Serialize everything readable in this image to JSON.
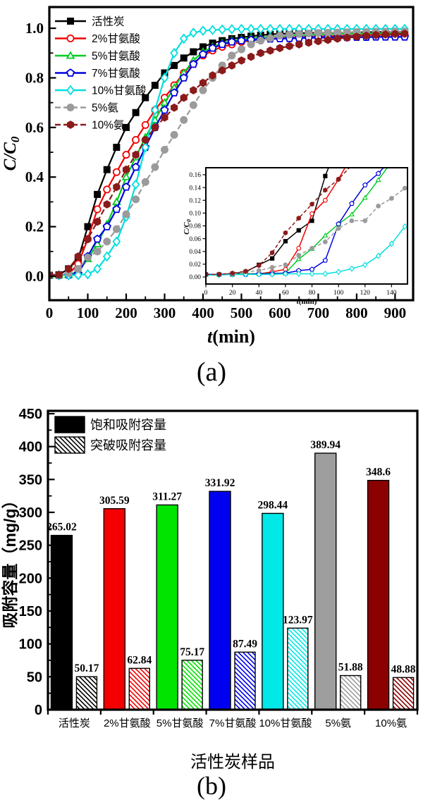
{
  "captions": {
    "a": "(a)",
    "b": "(b)"
  },
  "chart_data": [
    {
      "id": "a",
      "type": "line",
      "title": "",
      "xlabel_italic": "t",
      "xlabel_rest": "(min)",
      "ylabel_main": "C/C",
      "ylabel_sub": "0",
      "xlim": [
        0,
        947
      ],
      "ylim": [
        -0.09,
        1.09
      ],
      "xticks": [
        0,
        100,
        200,
        300,
        400,
        500,
        600,
        700,
        800,
        900
      ],
      "yticks": [
        0.0,
        0.2,
        0.4,
        0.6,
        0.8,
        1.0
      ],
      "legend_position": "upper-left",
      "x": [
        0,
        25,
        50,
        75,
        100,
        125,
        150,
        175,
        200,
        225,
        250,
        275,
        300,
        325,
        350,
        375,
        400,
        425,
        450,
        475,
        500,
        525,
        550,
        575,
        600,
        625,
        650,
        675,
        700,
        725,
        750,
        775,
        800,
        825,
        850,
        875,
        900,
        925
      ],
      "series": [
        {
          "name": "活性炭",
          "slug": "activated-carbon",
          "color": "#000000",
          "marker": "square",
          "filled": true,
          "dash": null,
          "values": [
            0.004,
            0.006,
            0.03,
            0.07,
            0.2,
            0.33,
            0.43,
            0.52,
            0.6,
            0.66,
            0.72,
            0.77,
            0.82,
            0.85,
            0.88,
            0.905,
            0.925,
            0.94,
            0.95,
            0.958,
            0.963,
            0.968,
            0.972,
            0.975,
            0.978,
            0.979,
            0.98,
            0.981,
            0.982,
            0.982,
            0.983,
            0.983,
            0.984,
            0.984,
            0.985,
            0.985,
            0.985,
            0.985
          ]
        },
        {
          "name": "2%甘氨酸",
          "slug": "glycine-2",
          "color": "#f20000",
          "marker": "circle",
          "filled": false,
          "dash": null,
          "values": [
            0.004,
            0.005,
            0.008,
            0.05,
            0.15,
            0.27,
            0.35,
            0.42,
            0.49,
            0.55,
            0.61,
            0.67,
            0.72,
            0.77,
            0.82,
            0.86,
            0.89,
            0.91,
            0.925,
            0.935,
            0.945,
            0.95,
            0.955,
            0.958,
            0.96,
            0.962,
            0.964,
            0.966,
            0.967,
            0.968,
            0.969,
            0.97,
            0.971,
            0.972,
            0.973,
            0.974,
            0.975,
            0.975
          ]
        },
        {
          "name": "5%甘氨酸",
          "slug": "glycine-5",
          "color": "#00cc22",
          "marker": "triangle",
          "filled": false,
          "dash": null,
          "values": [
            0.004,
            0.005,
            0.006,
            0.02,
            0.07,
            0.13,
            0.21,
            0.3,
            0.4,
            0.48,
            0.56,
            0.63,
            0.7,
            0.76,
            0.82,
            0.87,
            0.905,
            0.925,
            0.94,
            0.95,
            0.955,
            0.96,
            0.963,
            0.966,
            0.968,
            0.97,
            0.972,
            0.973,
            0.975,
            0.976,
            0.977,
            0.978,
            0.978,
            0.979,
            0.98,
            0.98,
            0.98,
            0.98
          ]
        },
        {
          "name": "7%甘氨酸",
          "slug": "glycine-7",
          "color": "#0000e0",
          "marker": "pentagon",
          "filled": false,
          "dash": null,
          "values": [
            0.004,
            0.004,
            0.005,
            0.01,
            0.08,
            0.15,
            0.2,
            0.27,
            0.36,
            0.44,
            0.52,
            0.6,
            0.67,
            0.74,
            0.8,
            0.855,
            0.895,
            0.92,
            0.935,
            0.945,
            0.95,
            0.953,
            0.955,
            0.957,
            0.958,
            0.959,
            0.96,
            0.961,
            0.962,
            0.962,
            0.963,
            0.963,
            0.964,
            0.964,
            0.965,
            0.965,
            0.965,
            0.965
          ]
        },
        {
          "name": "10%甘氨酸",
          "slug": "glycine-10",
          "color": "#00dede",
          "marker": "diamond",
          "filled": false,
          "dash": null,
          "values": [
            0.003,
            0.004,
            0.004,
            0.005,
            0.008,
            0.03,
            0.08,
            0.14,
            0.24,
            0.37,
            0.52,
            0.67,
            0.8,
            0.9,
            0.958,
            0.982,
            0.99,
            0.993,
            0.995,
            0.996,
            0.997,
            0.997,
            0.997,
            0.997,
            0.997,
            0.997,
            0.997,
            0.997,
            0.997,
            0.997,
            0.997,
            0.997,
            0.997,
            0.997,
            0.997,
            0.997,
            0.997,
            0.997
          ]
        },
        {
          "name": "5%氨",
          "slug": "ammonia-5",
          "color": "#9b9b9b",
          "marker": "circle",
          "filled": true,
          "dash": "8 4",
          "values": [
            0.004,
            0.005,
            0.012,
            0.03,
            0.076,
            0.1,
            0.14,
            0.19,
            0.25,
            0.31,
            0.38,
            0.44,
            0.51,
            0.57,
            0.63,
            0.69,
            0.75,
            0.8,
            0.85,
            0.89,
            0.915,
            0.935,
            0.95,
            0.96,
            0.97,
            0.974,
            0.977,
            0.979,
            0.981,
            0.982,
            0.983,
            0.984,
            0.985,
            0.985,
            0.986,
            0.986,
            0.987,
            0.987
          ]
        },
        {
          "name": "10%氨",
          "slug": "ammonia-10",
          "color": "#8b1a1a",
          "marker": "hexagon",
          "filled": true,
          "dash": "8 4",
          "values": [
            0.004,
            0.006,
            0.03,
            0.08,
            0.15,
            0.22,
            0.29,
            0.36,
            0.43,
            0.49,
            0.55,
            0.6,
            0.64,
            0.68,
            0.72,
            0.75,
            0.78,
            0.81,
            0.83,
            0.85,
            0.87,
            0.885,
            0.9,
            0.91,
            0.92,
            0.928,
            0.935,
            0.942,
            0.948,
            0.953,
            0.958,
            0.962,
            0.966,
            0.97,
            0.973,
            0.975,
            0.977,
            0.978
          ]
        }
      ],
      "inset": {
        "xlim": [
          0,
          152
        ],
        "ylim": [
          -0.011,
          0.171
        ],
        "xticks": [
          0,
          20,
          40,
          60,
          80,
          100,
          120,
          140
        ],
        "yticks": [
          0.0,
          0.02,
          0.04,
          0.06,
          0.08,
          0.1,
          0.12,
          0.14,
          0.16
        ],
        "x": [
          0,
          10,
          20,
          30,
          40,
          50,
          60,
          70,
          80,
          90,
          100,
          110,
          120,
          130,
          140,
          150
        ],
        "values": [
          [
            0.004,
            0.004,
            0.005,
            0.008,
            0.019,
            0.029,
            0.056,
            0.073,
            0.088,
            0.158,
            0.21,
            0.27,
            0.33,
            0.38,
            0.41,
            0.43
          ],
          [
            0.004,
            0.004,
            0.004,
            0.005,
            0.005,
            0.008,
            0.012,
            0.045,
            0.099,
            0.12,
            0.153,
            0.19,
            0.24,
            0.28,
            0.32,
            0.35
          ],
          [
            0.004,
            0.004,
            0.004,
            0.005,
            0.005,
            0.006,
            0.006,
            0.028,
            0.044,
            0.065,
            0.083,
            0.098,
            0.124,
            0.152,
            0.18,
            0.21
          ],
          [
            0.004,
            0.004,
            0.004,
            0.004,
            0.005,
            0.005,
            0.006,
            0.01,
            0.012,
            0.026,
            0.083,
            0.115,
            0.144,
            0.162,
            0.185,
            0.21
          ],
          [
            0.003,
            0.003,
            0.004,
            0.004,
            0.004,
            0.004,
            0.005,
            0.005,
            0.005,
            0.005,
            0.008,
            0.013,
            0.019,
            0.033,
            0.052,
            0.079
          ],
          [
            0.004,
            0.004,
            0.005,
            0.008,
            0.01,
            0.015,
            0.019,
            0.034,
            0.045,
            0.055,
            0.076,
            0.088,
            0.088,
            0.111,
            0.123,
            0.139
          ],
          [
            0.004,
            0.004,
            0.006,
            0.009,
            0.018,
            0.038,
            0.069,
            0.092,
            0.114,
            0.136,
            0.153,
            0.175,
            0.22,
            0.26,
            0.3,
            0.33
          ]
        ]
      }
    },
    {
      "id": "b",
      "type": "bar",
      "title": "",
      "xlabel": "活性炭样品",
      "ylabel": "吸附容量（mg/g）",
      "ylim": [
        0,
        450
      ],
      "yticks": [
        0,
        50,
        100,
        150,
        200,
        250,
        300,
        350,
        400,
        450
      ],
      "legend_position": "upper-left",
      "categories": [
        "活性炭",
        "2%甘氨酸",
        "5%甘氨酸",
        "7%甘氨酸",
        "10%甘氨酸",
        "5%氨",
        "10%氨"
      ],
      "bar_colors": [
        "#000000",
        "#f40000",
        "#00e400",
        "#0000f0",
        "#00e8e8",
        "#9e9e9e",
        "#8b0000"
      ],
      "series": [
        {
          "name": "饱和吸附容量",
          "slug": "saturation-capacity",
          "style": "solid",
          "values": [
            265.02,
            305.59,
            311.27,
            331.92,
            298.44,
            389.94,
            348.6
          ]
        },
        {
          "name": "突破吸附容量",
          "slug": "breakthrough-capacity",
          "style": "hatched",
          "values": [
            50.17,
            62.84,
            75.17,
            87.49,
            123.97,
            51.88,
            48.88
          ]
        }
      ]
    }
  ]
}
